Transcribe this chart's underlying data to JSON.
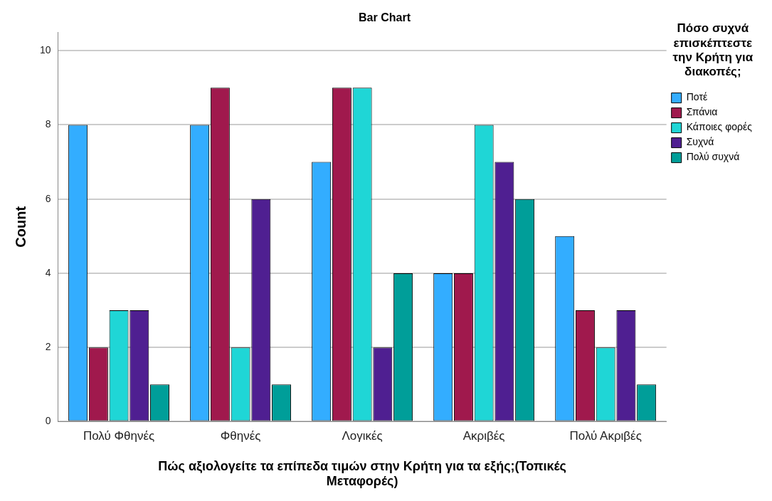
{
  "chart_data": {
    "type": "bar",
    "title": "Bar Chart",
    "xlabel": "Πώς αξιολογείτε τα επίπεδα τιμών στην Κρήτη για τα εξής;(Τοπικές Μεταφορές)",
    "ylabel": "Count",
    "legend_title": "Πόσο συχνά επισκέπτεστε την Κρήτη για διακοπές;",
    "categories": [
      "Πολύ Φθηνές",
      "Φθηνές",
      "Λογικές",
      "Ακριβές",
      "Πολύ Ακριβές"
    ],
    "series": [
      {
        "name": "Ποτέ",
        "color": "#33adff",
        "values": [
          8,
          8,
          7,
          4,
          5
        ]
      },
      {
        "name": "Σπάνια",
        "color": "#a0194d",
        "values": [
          2,
          9,
          9,
          4,
          3
        ]
      },
      {
        "name": "Κάποιες φορές",
        "color": "#1fd6d6",
        "values": [
          3,
          2,
          9,
          8,
          2
        ]
      },
      {
        "name": "Συχνά",
        "color": "#4f1f91",
        "values": [
          3,
          6,
          2,
          7,
          3
        ]
      },
      {
        "name": "Πολύ συχνά",
        "color": "#009e99",
        "values": [
          1,
          1,
          4,
          6,
          1
        ]
      }
    ],
    "ylim": [
      0,
      10.5
    ],
    "yticks": [
      0,
      2,
      4,
      6,
      8,
      10
    ],
    "grid": "y",
    "legend": "right"
  }
}
